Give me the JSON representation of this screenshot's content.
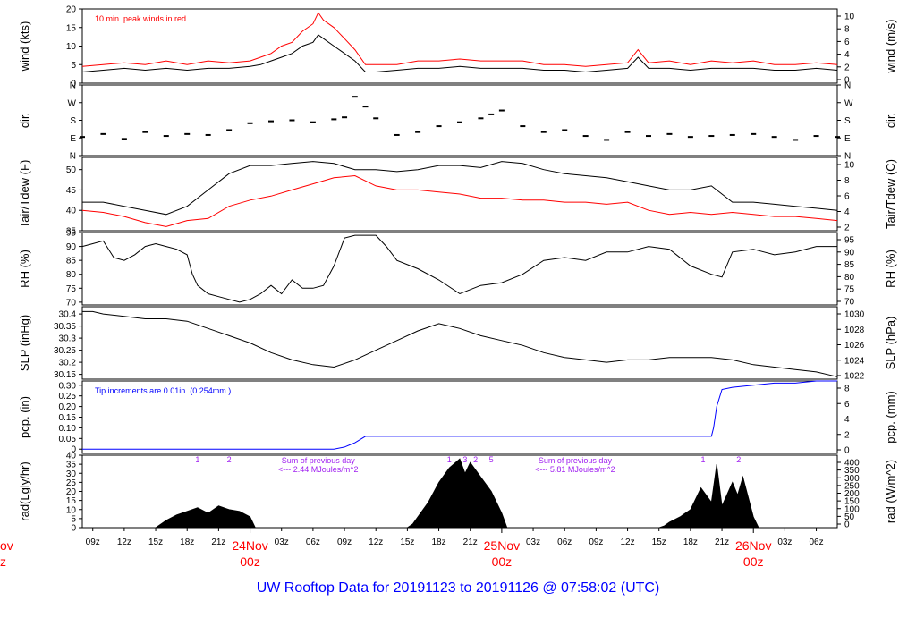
{
  "title": "UW Rooftop Data for 20191123  to  20191126 @ 07:58:02  (UTC)",
  "colors": {
    "black": "#000000",
    "red": "#ff0000",
    "blue": "#0000ff",
    "purple": "#a020f0",
    "title": "#0000ff"
  },
  "x_axis": {
    "hours_start": 8,
    "hours_end": 80,
    "ticks": [
      {
        "h": 9,
        "label": "09z"
      },
      {
        "h": 12,
        "label": "12z"
      },
      {
        "h": 15,
        "label": "15z"
      },
      {
        "h": 18,
        "label": "18z"
      },
      {
        "h": 21,
        "label": "21z"
      },
      {
        "h": 27,
        "label": "03z"
      },
      {
        "h": 30,
        "label": "06z"
      },
      {
        "h": 33,
        "label": "09z"
      },
      {
        "h": 36,
        "label": "12z"
      },
      {
        "h": 39,
        "label": "15z"
      },
      {
        "h": 42,
        "label": "18z"
      },
      {
        "h": 45,
        "label": "21z"
      },
      {
        "h": 51,
        "label": "03z"
      },
      {
        "h": 54,
        "label": "06z"
      },
      {
        "h": 57,
        "label": "09z"
      },
      {
        "h": 60,
        "label": "12z"
      },
      {
        "h": 63,
        "label": "15z"
      },
      {
        "h": 66,
        "label": "18z"
      },
      {
        "h": 69,
        "label": "21z"
      },
      {
        "h": 75,
        "label": "03z"
      },
      {
        "h": 78,
        "label": "06z"
      }
    ],
    "day_labels": [
      {
        "h": 24,
        "date": "24Nov",
        "time": "00z"
      },
      {
        "h": 48,
        "date": "25Nov",
        "time": "00z"
      },
      {
        "h": 72,
        "date": "26Nov",
        "time": "00z"
      }
    ],
    "left_cut_label": {
      "date": "ov",
      "time": "z"
    }
  },
  "chart_data": [
    {
      "type": "line",
      "id": "wind",
      "ylabel": "wind (kts)",
      "ylabel2": "wind (m/s)",
      "ylim": [
        0,
        20
      ],
      "yticks": [
        0,
        5,
        10,
        15,
        20
      ],
      "yticks2": [
        0,
        2,
        4,
        6,
        8,
        10
      ],
      "annotation": "10 min. peak winds in red",
      "series": [
        {
          "name": "wind speed",
          "color": "#000000",
          "x": [
            8,
            10,
            12,
            14,
            16,
            18,
            20,
            22,
            24,
            25,
            26,
            27,
            28,
            29,
            30,
            30.5,
            31,
            32,
            33,
            34,
            35,
            36,
            38,
            40,
            42,
            44,
            46,
            48,
            50,
            52,
            54,
            56,
            58,
            60,
            61,
            62,
            64,
            66,
            68,
            70,
            72,
            74,
            76,
            78,
            80
          ],
          "y": [
            3,
            3.5,
            4,
            3.5,
            4,
            3.5,
            4,
            4,
            4.5,
            5,
            6,
            7,
            8,
            10,
            11,
            13,
            12,
            10,
            8,
            6,
            3,
            3,
            3.5,
            4,
            4,
            4.5,
            4,
            4,
            4,
            3.5,
            3.5,
            3,
            3.5,
            4,
            7,
            4,
            4,
            3.5,
            4,
            4,
            4,
            3.5,
            3.5,
            4,
            3.5
          ]
        },
        {
          "name": "peak wind",
          "color": "#ff0000",
          "x": [
            8,
            10,
            12,
            14,
            16,
            18,
            20,
            22,
            24,
            25,
            26,
            27,
            28,
            29,
            30,
            30.5,
            31,
            32,
            33,
            34,
            35,
            36,
            38,
            40,
            42,
            44,
            46,
            48,
            50,
            52,
            54,
            56,
            58,
            60,
            61,
            62,
            64,
            66,
            68,
            70,
            72,
            74,
            76,
            78,
            80
          ],
          "y": [
            4.5,
            5,
            5.5,
            5,
            6,
            5,
            6,
            5.5,
            6,
            7,
            8,
            10,
            11,
            14,
            16,
            19,
            17,
            15,
            12,
            9,
            5,
            5,
            5,
            6,
            6,
            6.5,
            6,
            6,
            6,
            5,
            5,
            4.5,
            5,
            5.5,
            9,
            5.5,
            6,
            5,
            6,
            5.5,
            6,
            5,
            5,
            5.5,
            5
          ]
        }
      ]
    },
    {
      "type": "scatter",
      "id": "dir",
      "ylabel": "dir.",
      "ylabel2": "dir.",
      "ylim": [
        0,
        360
      ],
      "yticklabels": [
        "N",
        "E",
        "S",
        "W",
        "N"
      ],
      "series": [
        {
          "name": "direction",
          "color": "#000000",
          "x": [
            8,
            10,
            12,
            14,
            16,
            18,
            20,
            22,
            24,
            26,
            28,
            30,
            32,
            33,
            34,
            35,
            36,
            38,
            40,
            42,
            44,
            46,
            47,
            48,
            50,
            52,
            54,
            56,
            58,
            60,
            62,
            64,
            66,
            68,
            70,
            72,
            74,
            76,
            78,
            80
          ],
          "y": [
            95,
            110,
            85,
            120,
            100,
            110,
            105,
            130,
            165,
            175,
            180,
            170,
            185,
            195,
            300,
            250,
            190,
            105,
            120,
            150,
            170,
            190,
            210,
            230,
            150,
            120,
            130,
            100,
            80,
            120,
            100,
            110,
            95,
            100,
            105,
            110,
            95,
            80,
            100,
            95
          ]
        }
      ]
    },
    {
      "type": "line",
      "id": "temp",
      "ylabel": "Tair/Tdew (F)",
      "ylabel2": "Tair/Tdew (C)",
      "ylim": [
        35,
        53
      ],
      "yticks": [
        35,
        40,
        45,
        50
      ],
      "yticks2": [
        2,
        4,
        6,
        8,
        10
      ],
      "series": [
        {
          "name": "Tair",
          "color": "#000000",
          "x": [
            8,
            10,
            12,
            14,
            16,
            18,
            20,
            22,
            24,
            26,
            28,
            30,
            32,
            34,
            36,
            38,
            40,
            42,
            44,
            46,
            48,
            50,
            52,
            54,
            56,
            58,
            60,
            62,
            64,
            66,
            68,
            70,
            72,
            74,
            76,
            78,
            80
          ],
          "y": [
            42,
            42,
            41,
            40,
            39,
            41,
            45,
            49,
            51,
            51,
            51.5,
            52,
            51.5,
            50,
            50,
            49.5,
            50,
            51,
            51,
            50.5,
            52,
            51.5,
            50,
            49,
            48.5,
            48,
            47,
            46,
            45,
            45,
            46,
            42,
            42,
            41.5,
            41,
            40.5,
            40
          ]
        },
        {
          "name": "Tdew",
          "color": "#ff0000",
          "x": [
            8,
            10,
            12,
            14,
            16,
            18,
            20,
            22,
            24,
            26,
            28,
            30,
            32,
            34,
            36,
            38,
            40,
            42,
            44,
            46,
            48,
            50,
            52,
            54,
            56,
            58,
            60,
            62,
            64,
            66,
            68,
            70,
            72,
            74,
            76,
            78,
            80
          ],
          "y": [
            40,
            39.5,
            38.5,
            37,
            36,
            37.5,
            38,
            41,
            42.5,
            43.5,
            45,
            46.5,
            48,
            48.5,
            46,
            45,
            45,
            44.5,
            44,
            43,
            43,
            42.5,
            42.5,
            42,
            42,
            41.5,
            42,
            40,
            39,
            39.5,
            39,
            39.5,
            39,
            38.5,
            38.5,
            38,
            37.5
          ]
        }
      ]
    },
    {
      "type": "line",
      "id": "rh",
      "ylabel": "RH (%)",
      "ylabel2": "RH (%)",
      "ylim": [
        69,
        95
      ],
      "yticks": [
        70,
        75,
        80,
        85,
        90,
        95
      ],
      "yticks2": [
        70,
        75,
        80,
        85,
        90,
        95
      ],
      "series": [
        {
          "name": "RH",
          "color": "#000000",
          "x": [
            8,
            9,
            10,
            11,
            12,
            13,
            14,
            15,
            16,
            17,
            18,
            18.5,
            19,
            20,
            21,
            22,
            23,
            24,
            25,
            26,
            27,
            28,
            29,
            30,
            31,
            32,
            33,
            34,
            35,
            36,
            37,
            38,
            40,
            42,
            44,
            46,
            48,
            50,
            52,
            54,
            56,
            58,
            60,
            62,
            64,
            66,
            68,
            69,
            70,
            72,
            74,
            76,
            78,
            80
          ],
          "y": [
            90,
            91,
            92,
            86,
            85,
            87,
            90,
            91,
            90,
            89,
            87,
            80,
            76,
            73,
            72,
            71,
            70,
            71,
            73,
            76,
            73,
            78,
            75,
            75,
            76,
            83,
            93,
            94,
            94,
            94,
            90,
            85,
            82,
            78,
            73,
            76,
            77,
            80,
            85,
            86,
            85,
            88,
            88,
            90,
            89,
            83,
            80,
            79,
            88,
            89,
            87,
            88,
            90,
            90
          ]
        }
      ]
    },
    {
      "type": "line",
      "id": "slp",
      "ylabel": "SLP (inHg)",
      "ylabel2": "SLP (hPa)",
      "ylim": [
        30.13,
        30.43
      ],
      "yticks": [
        30.15,
        30.2,
        30.25,
        30.3,
        30.35,
        30.4
      ],
      "yticks2": [
        1022,
        1024,
        1026,
        1028,
        1030
      ],
      "series": [
        {
          "name": "SLP",
          "color": "#000000",
          "x": [
            8,
            9,
            10,
            12,
            14,
            16,
            18,
            20,
            22,
            24,
            26,
            28,
            30,
            32,
            34,
            36,
            38,
            40,
            42,
            44,
            46,
            48,
            50,
            52,
            54,
            56,
            58,
            60,
            62,
            64,
            66,
            68,
            70,
            72,
            74,
            76,
            78,
            80
          ],
          "y": [
            30.41,
            30.41,
            30.4,
            30.39,
            30.38,
            30.38,
            30.37,
            30.34,
            30.31,
            30.28,
            30.24,
            30.21,
            30.19,
            30.18,
            30.21,
            30.25,
            30.29,
            30.33,
            30.36,
            30.34,
            30.31,
            30.29,
            30.27,
            30.24,
            30.22,
            30.21,
            30.2,
            30.21,
            30.21,
            30.22,
            30.22,
            30.22,
            30.21,
            30.19,
            30.18,
            30.17,
            30.16,
            30.14
          ]
        }
      ]
    },
    {
      "type": "line",
      "id": "pcp",
      "ylabel": "pcp. (in)",
      "ylabel2": "pcp. (mm)",
      "ylim": [
        -0.02,
        0.32
      ],
      "yticks": [
        0,
        0.05,
        0.1,
        0.15,
        0.2,
        0.25,
        0.3
      ],
      "yticklabels": [
        "0",
        "0.05",
        "0.10",
        "0.15",
        "0.20",
        "0.25",
        "0.30"
      ],
      "yticks2": [
        0,
        2,
        4,
        6,
        8
      ],
      "annotation": "Tip increments are 0.01in. (0.254mm.)",
      "series": [
        {
          "name": "precip",
          "color": "#0000ff",
          "x": [
            8,
            32,
            33,
            33.5,
            34,
            35,
            68,
            68.2,
            68.5,
            69,
            70,
            72,
            74,
            76,
            78,
            80
          ],
          "y": [
            0,
            0,
            0.01,
            0.02,
            0.03,
            0.06,
            0.06,
            0.1,
            0.2,
            0.28,
            0.29,
            0.3,
            0.31,
            0.31,
            0.32,
            0.32
          ]
        }
      ]
    },
    {
      "type": "area",
      "id": "rad",
      "ylabel": "rad(Lgly/hr)",
      "ylabel2": "rad (W/m^2)",
      "ylim": [
        0,
        40
      ],
      "yticks": [
        0,
        5,
        10,
        15,
        20,
        25,
        30,
        35,
        40
      ],
      "yticks2": [
        0,
        50,
        100,
        150,
        200,
        250,
        300,
        350,
        400
      ],
      "annotations": [
        {
          "h": 19,
          "text": "1"
        },
        {
          "h": 22,
          "text": "2"
        },
        {
          "h": 43,
          "text": "1"
        },
        {
          "h": 44.5,
          "text": "3"
        },
        {
          "h": 45.5,
          "text": "2"
        },
        {
          "h": 47,
          "text": "5"
        },
        {
          "h": 67.2,
          "text": "1"
        },
        {
          "h": 70.6,
          "text": "2"
        }
      ],
      "notes": [
        {
          "h": 30.5,
          "line1": "Sum of previous day",
          "line2": "<--- 2.44 MJoules/m^2"
        },
        {
          "h": 55,
          "line1": "Sum of previous day",
          "line2": "<--- 5.81 MJoules/m^2"
        }
      ],
      "series": [
        {
          "name": "radiation",
          "color": "#000000",
          "x": [
            8,
            15,
            15.5,
            16,
            17,
            18,
            19,
            20,
            21,
            22,
            23,
            24,
            24.5,
            39,
            39.5,
            40,
            41,
            42,
            43,
            44,
            44.5,
            45,
            46,
            47,
            48,
            48.5,
            63,
            63.5,
            64,
            65,
            66,
            67,
            68,
            68.5,
            69,
            70,
            70.5,
            71,
            72,
            72.5,
            80
          ],
          "y": [
            0,
            0,
            2,
            4,
            7,
            9,
            11,
            8,
            12,
            10,
            9,
            6,
            0,
            0,
            2,
            6,
            14,
            25,
            33,
            38,
            30,
            36,
            28,
            20,
            8,
            0,
            0,
            1,
            3,
            6,
            10,
            22,
            14,
            35,
            12,
            25,
            18,
            28,
            6,
            0,
            0
          ]
        }
      ]
    }
  ]
}
